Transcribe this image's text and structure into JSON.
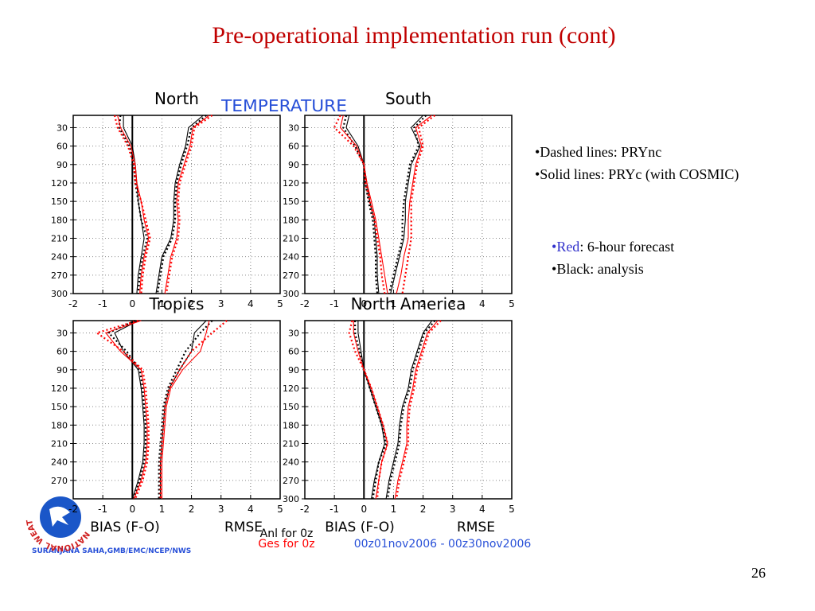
{
  "slide": {
    "title": "Pre-operational implementation run (cont)",
    "number": "26",
    "bullets": [
      "•Dashed lines: PRYnc",
      "•Solid lines: PRYc (with COSMIC)"
    ],
    "color_bullets": [
      {
        "mark": "•",
        "word": "Red",
        "rest": ": 6-hour forecast"
      },
      {
        "mark": "•",
        "word": "",
        "rest": "Black: analysis"
      }
    ]
  },
  "figure": {
    "heading": "TEMPERATURE",
    "bias_label": "BIAS (F-O)",
    "rmse_label": "RMSE",
    "anl": "Anl for 0z",
    "ges": "Ges for 0z",
    "period": "00z01nov2006 - 00z30nov2006",
    "credit": "SURANJANA SAHA,GMB/EMC/NCEP/NWS",
    "logo": "NATIONAL WEATHER SERVICE"
  },
  "chart_data": [
    {
      "type": "line",
      "title": "North",
      "y": [
        10,
        30,
        60,
        90,
        120,
        150,
        180,
        210,
        240,
        270,
        300
      ],
      "xlim": [
        -2,
        5
      ],
      "xticks": [
        -2,
        -1,
        0,
        1,
        2,
        3,
        4,
        5
      ],
      "ylim": [
        10,
        300
      ],
      "y_inverted": true,
      "yticks": [
        30,
        60,
        90,
        120,
        150,
        180,
        210,
        240,
        270,
        300
      ],
      "grid": true,
      "series": [
        {
          "color": "#000000",
          "dashed": false,
          "values": [
            -0.3,
            -0.3,
            0,
            0.1,
            0.15,
            0.2,
            0.3,
            0.4,
            0.3,
            0.2,
            0.15
          ]
        },
        {
          "color": "#000000",
          "dashed": true,
          "values": [
            -0.4,
            -0.45,
            -0.1,
            0.05,
            0.1,
            0.2,
            0.3,
            0.5,
            0.35,
            0.25,
            0.2
          ]
        },
        {
          "color": "#ff0000",
          "dashed": false,
          "values": [
            -0.5,
            -0.4,
            -0.05,
            0.1,
            0.15,
            0.3,
            0.4,
            0.55,
            0.4,
            0.3,
            0.25
          ]
        },
        {
          "color": "#ff0000",
          "dashed": true,
          "values": [
            -0.6,
            -0.5,
            -0.15,
            0.05,
            0.1,
            0.3,
            0.45,
            0.6,
            0.45,
            0.35,
            0.3
          ]
        },
        {
          "color": "#000000",
          "dashed": false,
          "values": [
            2.4,
            1.9,
            1.8,
            1.6,
            1.45,
            1.4,
            1.4,
            1.3,
            1.0,
            0.9,
            0.8
          ]
        },
        {
          "color": "#000000",
          "dashed": true,
          "values": [
            2.5,
            2.0,
            1.85,
            1.65,
            1.5,
            1.45,
            1.45,
            1.35,
            1.05,
            0.95,
            0.85
          ]
        },
        {
          "color": "#ff0000",
          "dashed": false,
          "values": [
            2.6,
            2.05,
            1.95,
            1.75,
            1.55,
            1.5,
            1.55,
            1.5,
            1.3,
            1.2,
            1.1
          ]
        },
        {
          "color": "#ff0000",
          "dashed": true,
          "values": [
            2.7,
            2.1,
            2.0,
            1.8,
            1.6,
            1.55,
            1.6,
            1.55,
            1.35,
            1.25,
            1.15
          ]
        }
      ]
    },
    {
      "type": "line",
      "title": "South",
      "y": [
        10,
        30,
        60,
        90,
        120,
        150,
        180,
        210,
        240,
        270,
        300
      ],
      "xlim": [
        -2,
        5
      ],
      "xticks": [
        -2,
        -1,
        0,
        1,
        2,
        3,
        4,
        5
      ],
      "ylim": [
        10,
        300
      ],
      "y_inverted": true,
      "yticks": [
        30,
        60,
        90,
        120,
        150,
        180,
        210,
        240,
        270,
        300
      ],
      "grid": true,
      "series": [
        {
          "color": "#000000",
          "dashed": false,
          "values": [
            -0.5,
            -0.6,
            -0.2,
            0,
            0.1,
            0.2,
            0.35,
            0.4,
            0.45,
            0.45,
            0.5
          ]
        },
        {
          "color": "#000000",
          "dashed": true,
          "values": [
            -0.6,
            -0.7,
            -0.3,
            0,
            0.05,
            0.15,
            0.3,
            0.35,
            0.4,
            0.4,
            0.45
          ]
        },
        {
          "color": "#ff0000",
          "dashed": false,
          "values": [
            -0.7,
            -0.8,
            -0.25,
            0,
            0.1,
            0.25,
            0.4,
            0.5,
            0.6,
            0.7,
            0.8
          ]
        },
        {
          "color": "#ff0000",
          "dashed": true,
          "values": [
            -0.8,
            -1.0,
            -0.35,
            0,
            0.05,
            0.2,
            0.35,
            0.45,
            0.55,
            0.6,
            0.7
          ]
        },
        {
          "color": "#000000",
          "dashed": false,
          "values": [
            2.0,
            1.6,
            1.9,
            1.6,
            1.5,
            1.4,
            1.4,
            1.35,
            1.2,
            1.05,
            0.9
          ]
        },
        {
          "color": "#000000",
          "dashed": true,
          "values": [
            2.1,
            1.7,
            1.85,
            1.55,
            1.45,
            1.35,
            1.3,
            1.3,
            1.15,
            1.0,
            0.85
          ]
        },
        {
          "color": "#ff0000",
          "dashed": false,
          "values": [
            2.3,
            1.75,
            1.95,
            1.75,
            1.65,
            1.55,
            1.5,
            1.5,
            1.35,
            1.25,
            1.1
          ]
        },
        {
          "color": "#ff0000",
          "dashed": true,
          "values": [
            2.4,
            1.85,
            2.0,
            1.8,
            1.7,
            1.6,
            1.6,
            1.6,
            1.5,
            1.4,
            1.3
          ]
        }
      ]
    },
    {
      "type": "line",
      "title": "Tropics",
      "y": [
        10,
        30,
        60,
        90,
        120,
        150,
        180,
        210,
        240,
        270,
        300
      ],
      "xlim": [
        -2,
        5
      ],
      "xticks": [
        -2,
        -1,
        0,
        1,
        2,
        3,
        4,
        5
      ],
      "ylim": [
        10,
        300
      ],
      "y_inverted": true,
      "yticks": [
        30,
        60,
        90,
        120,
        150,
        180,
        210,
        240,
        270
      ],
      "grid": true,
      "series": [
        {
          "color": "#000000",
          "dashed": false,
          "values": [
            0.2,
            -0.6,
            -0.3,
            0.2,
            0.3,
            0.35,
            0.4,
            0.4,
            0.35,
            0.2,
            0
          ]
        },
        {
          "color": "#000000",
          "dashed": true,
          "values": [
            0.1,
            -0.8,
            -0.2,
            0.25,
            0.35,
            0.4,
            0.45,
            0.45,
            0.4,
            0.25,
            0.05
          ]
        },
        {
          "color": "#ff0000",
          "dashed": false,
          "values": [
            0.3,
            -0.9,
            -0.4,
            0.3,
            0.4,
            0.45,
            0.5,
            0.5,
            0.45,
            0.3,
            0.05
          ]
        },
        {
          "color": "#ff0000",
          "dashed": true,
          "values": [
            0.2,
            -1.2,
            -0.3,
            0.35,
            0.45,
            0.5,
            0.55,
            0.55,
            0.5,
            0.35,
            0.1
          ]
        },
        {
          "color": "#000000",
          "dashed": false,
          "values": [
            2.5,
            2.1,
            2.0,
            1.6,
            1.25,
            1.1,
            1.05,
            1.0,
            0.95,
            0.95,
            0.95
          ]
        },
        {
          "color": "#000000",
          "dashed": true,
          "values": [
            2.7,
            2.3,
            1.8,
            1.5,
            1.2,
            1.05,
            1.0,
            0.95,
            0.9,
            0.9,
            0.9
          ]
        },
        {
          "color": "#ff0000",
          "dashed": false,
          "values": [
            2.6,
            2.5,
            2.3,
            1.7,
            1.3,
            1.15,
            1.1,
            1.05,
            1.0,
            1.0,
            1.0
          ]
        },
        {
          "color": "#ff0000",
          "dashed": true,
          "values": [
            3.2,
            2.7,
            2.0,
            1.6,
            1.25,
            1.1,
            1.05,
            1.0,
            0.95,
            0.95,
            0.95
          ]
        }
      ]
    },
    {
      "type": "line",
      "title": "North America",
      "y": [
        10,
        30,
        60,
        90,
        120,
        150,
        180,
        210,
        240,
        270,
        300
      ],
      "xlim": [
        -2,
        5
      ],
      "xticks": [
        -2,
        -1,
        0,
        1,
        2,
        3,
        4,
        5
      ],
      "ylim": [
        10,
        300
      ],
      "y_inverted": true,
      "yticks": [
        30,
        60,
        90,
        120,
        150,
        180,
        210,
        240,
        270,
        300
      ],
      "grid": true,
      "series": [
        {
          "color": "#000000",
          "dashed": false,
          "values": [
            -0.2,
            -0.2,
            -0.1,
            0,
            0.2,
            0.4,
            0.6,
            0.7,
            0.5,
            0.35,
            0.25
          ]
        },
        {
          "color": "#000000",
          "dashed": true,
          "values": [
            -0.3,
            -0.3,
            -0.15,
            0,
            0.2,
            0.4,
            0.6,
            0.75,
            0.5,
            0.4,
            0.3
          ]
        },
        {
          "color": "#ff0000",
          "dashed": false,
          "values": [
            -0.35,
            -0.35,
            -0.2,
            0,
            0.25,
            0.45,
            0.65,
            0.8,
            0.6,
            0.5,
            0.4
          ]
        },
        {
          "color": "#ff0000",
          "dashed": true,
          "values": [
            -0.4,
            -0.5,
            -0.3,
            0,
            0.25,
            0.45,
            0.65,
            0.8,
            0.6,
            0.5,
            0.45
          ]
        },
        {
          "color": "#000000",
          "dashed": false,
          "values": [
            2.3,
            2.0,
            1.8,
            1.6,
            1.5,
            1.3,
            1.2,
            1.15,
            1.0,
            0.85,
            0.75
          ]
        },
        {
          "color": "#000000",
          "dashed": true,
          "values": [
            2.4,
            2.05,
            1.85,
            1.65,
            1.55,
            1.35,
            1.25,
            1.2,
            1.05,
            0.9,
            0.8
          ]
        },
        {
          "color": "#ff0000",
          "dashed": false,
          "values": [
            2.5,
            2.15,
            1.95,
            1.75,
            1.65,
            1.5,
            1.45,
            1.45,
            1.3,
            1.15,
            1.05
          ]
        },
        {
          "color": "#ff0000",
          "dashed": true,
          "values": [
            2.6,
            2.2,
            2.0,
            1.8,
            1.7,
            1.55,
            1.5,
            1.5,
            1.35,
            1.2,
            1.1
          ]
        }
      ]
    }
  ]
}
